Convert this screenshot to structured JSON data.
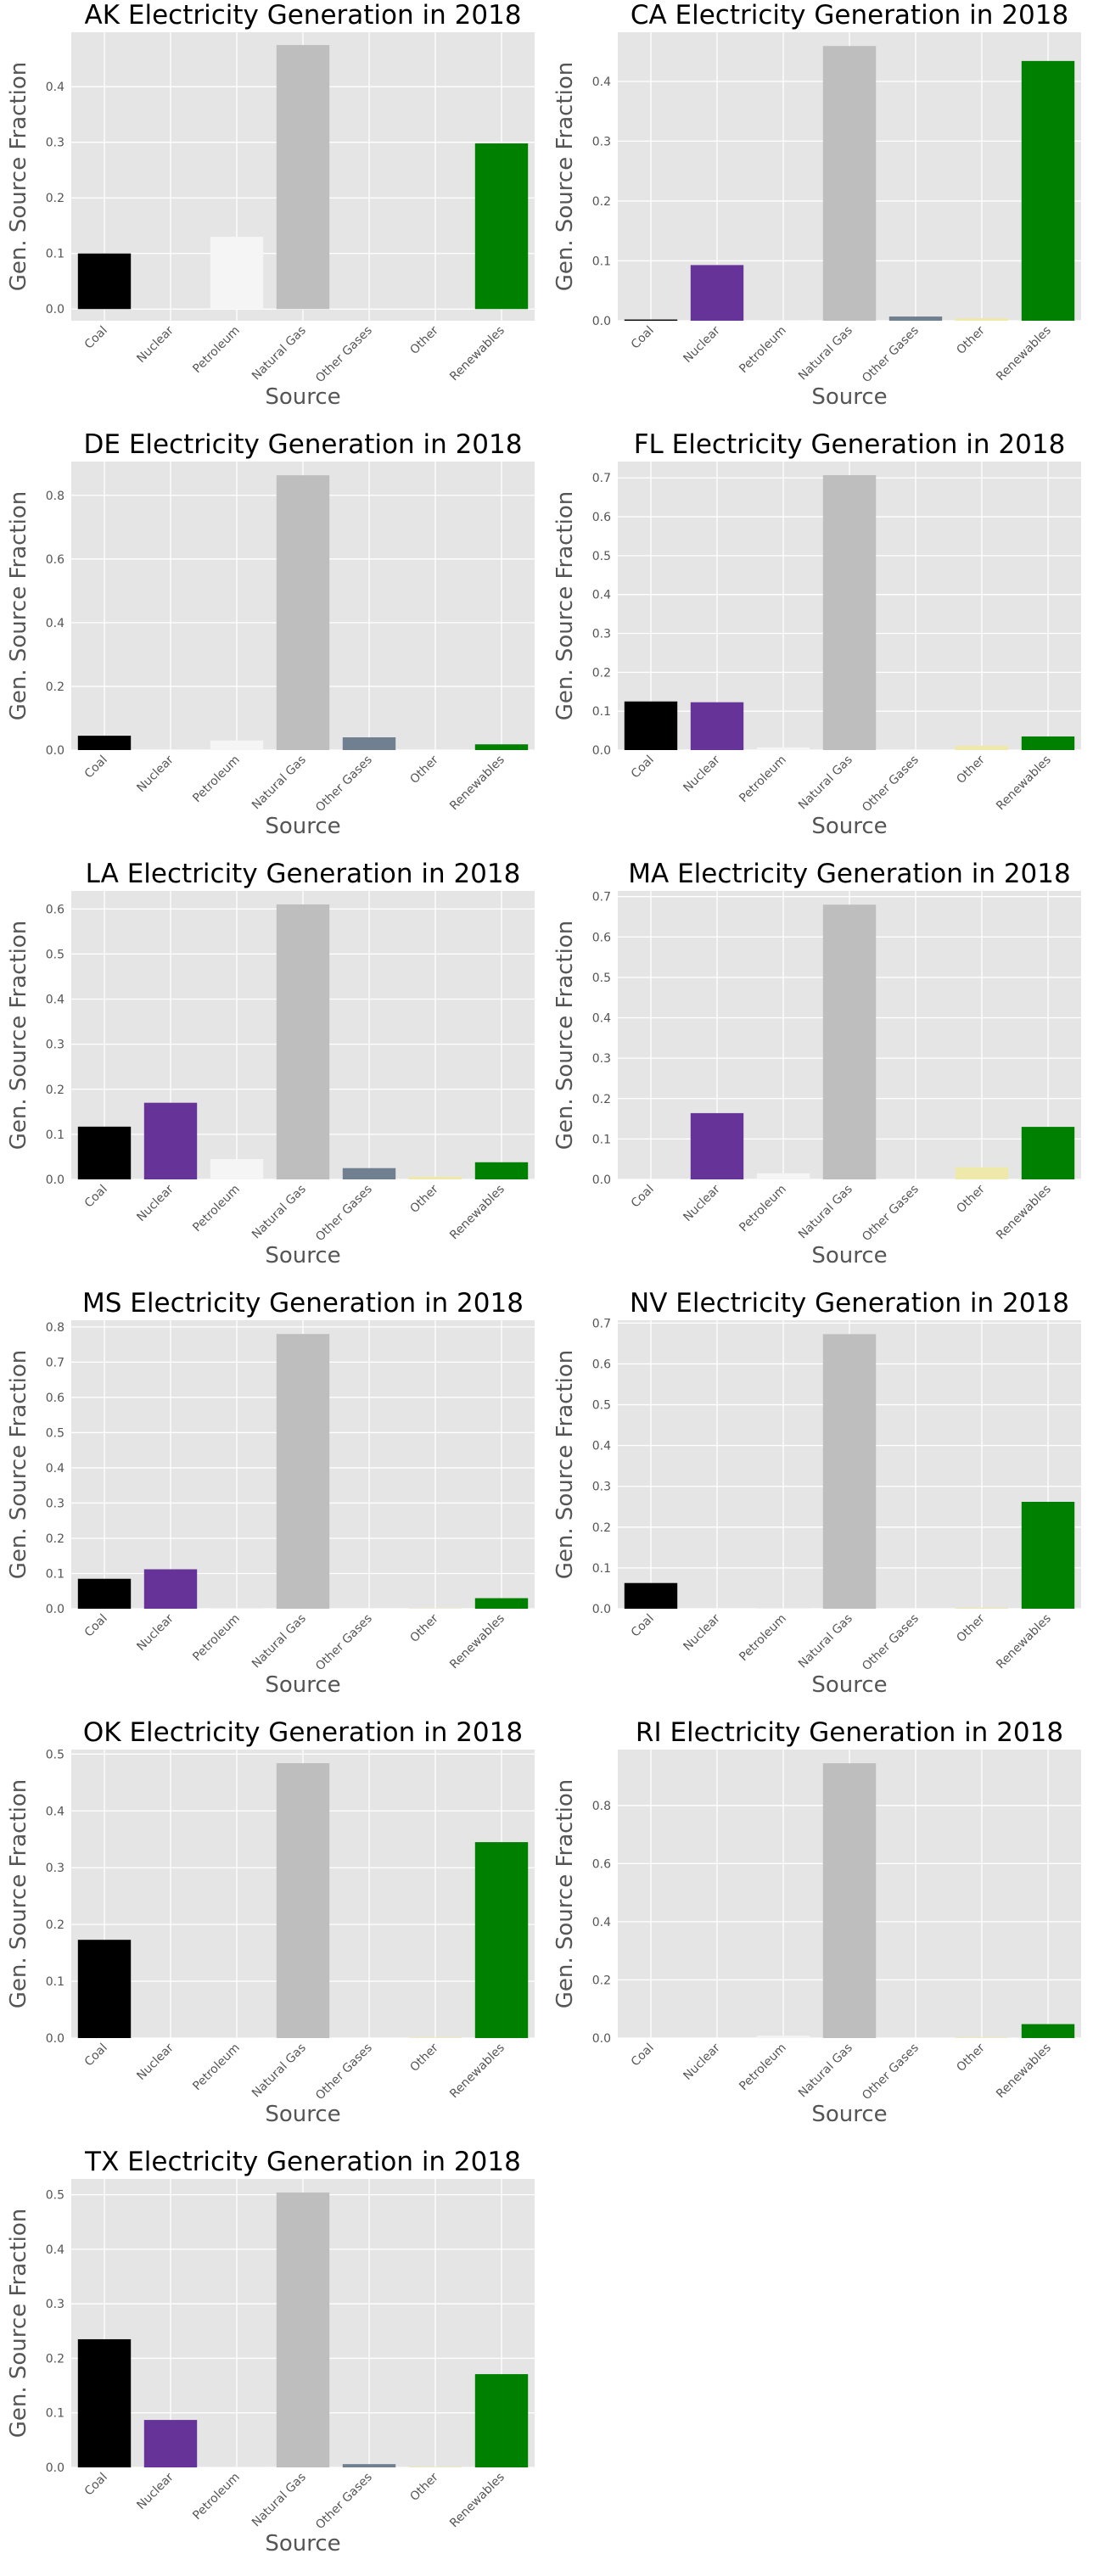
{
  "chart_data": [
    {
      "type": "bar",
      "title": "AK Electricity Generation in 2018",
      "xlabel": "Source",
      "ylabel": "Gen. Source Fraction",
      "categories": [
        "Coal",
        "Nuclear",
        "Petroleum",
        "Natural Gas",
        "Other Gases",
        "Other",
        "Renewables"
      ],
      "values": [
        0.1,
        0,
        0.13,
        0.475,
        0,
        0,
        0.298
      ],
      "colors": [
        "#000000",
        "#663399",
        "#f5f5f5",
        "#bebebe",
        "#708090",
        "#eee8aa",
        "#008000"
      ],
      "ylim": [
        -0.021,
        0.498
      ],
      "yticks": [
        "0.0",
        "0.1",
        "0.2",
        "0.3",
        "0.4"
      ],
      "grid": true,
      "legend": "none"
    },
    {
      "type": "bar",
      "title": "CA Electricity Generation in 2018",
      "xlabel": "Source",
      "ylabel": "Gen. Source Fraction",
      "categories": [
        "Coal",
        "Nuclear",
        "Petroleum",
        "Natural Gas",
        "Other Gases",
        "Other",
        "Renewables"
      ],
      "values": [
        0.002,
        0.093,
        0.001,
        0.459,
        0.007,
        0.004,
        0.434
      ],
      "colors": [
        "#000000",
        "#663399",
        "#f5f5f5",
        "#bebebe",
        "#708090",
        "#eee8aa",
        "#008000"
      ],
      "ylim": [
        0,
        0.482
      ],
      "yticks": [
        "0.0",
        "0.1",
        "0.2",
        "0.3",
        "0.4"
      ],
      "grid": true,
      "legend": "none"
    },
    {
      "type": "bar",
      "title": "DE Electricity Generation in 2018",
      "xlabel": "Source",
      "ylabel": "Gen. Source Fraction",
      "categories": [
        "Coal",
        "Nuclear",
        "Petroleum",
        "Natural Gas",
        "Other Gases",
        "Other",
        "Renewables"
      ],
      "values": [
        0.045,
        0,
        0.03,
        0.863,
        0.04,
        0,
        0.018
      ],
      "colors": [
        "#000000",
        "#663399",
        "#f5f5f5",
        "#bebebe",
        "#708090",
        "#eee8aa",
        "#008000"
      ],
      "ylim": [
        0,
        0.906
      ],
      "yticks": [
        "0.0",
        "0.2",
        "0.4",
        "0.6",
        "0.8"
      ],
      "grid": true,
      "legend": "none"
    },
    {
      "type": "bar",
      "title": "FL Electricity Generation in 2018",
      "xlabel": "Source",
      "ylabel": "Gen. Source Fraction",
      "categories": [
        "Coal",
        "Nuclear",
        "Petroleum",
        "Natural Gas",
        "Other Gases",
        "Other",
        "Renewables"
      ],
      "values": [
        0.125,
        0.123,
        0.007,
        0.707,
        0,
        0.011,
        0.035
      ],
      "colors": [
        "#000000",
        "#663399",
        "#f5f5f5",
        "#bebebe",
        "#708090",
        "#eee8aa",
        "#008000"
      ],
      "ylim": [
        0,
        0.742
      ],
      "yticks": [
        "0.0",
        "0.1",
        "0.2",
        "0.3",
        "0.4",
        "0.5",
        "0.6",
        "0.7"
      ],
      "grid": true,
      "legend": "none"
    },
    {
      "type": "bar",
      "title": "LA Electricity Generation in 2018",
      "xlabel": "Source",
      "ylabel": "Gen. Source Fraction",
      "categories": [
        "Coal",
        "Nuclear",
        "Petroleum",
        "Natural Gas",
        "Other Gases",
        "Other",
        "Renewables"
      ],
      "values": [
        0.117,
        0.17,
        0.045,
        0.61,
        0.025,
        0.006,
        0.038
      ],
      "colors": [
        "#000000",
        "#663399",
        "#f5f5f5",
        "#bebebe",
        "#708090",
        "#eee8aa",
        "#008000"
      ],
      "ylim": [
        0,
        0.64
      ],
      "yticks": [
        "0.0",
        "0.1",
        "0.2",
        "0.3",
        "0.4",
        "0.5",
        "0.6"
      ],
      "grid": true,
      "legend": "none"
    },
    {
      "type": "bar",
      "title": "MA Electricity Generation in 2018",
      "xlabel": "Source",
      "ylabel": "Gen. Source Fraction",
      "categories": [
        "Coal",
        "Nuclear",
        "Petroleum",
        "Natural Gas",
        "Other Gases",
        "Other",
        "Renewables"
      ],
      "values": [
        0,
        0.164,
        0.015,
        0.68,
        0,
        0.03,
        0.13
      ],
      "colors": [
        "#000000",
        "#663399",
        "#f5f5f5",
        "#bebebe",
        "#708090",
        "#eee8aa",
        "#008000"
      ],
      "ylim": [
        0,
        0.714
      ],
      "yticks": [
        "0.0",
        "0.1",
        "0.2",
        "0.3",
        "0.4",
        "0.5",
        "0.6",
        "0.7"
      ],
      "grid": true,
      "legend": "none"
    },
    {
      "type": "bar",
      "title": "MS Electricity Generation in 2018",
      "xlabel": "Source",
      "ylabel": "Gen. Source Fraction",
      "categories": [
        "Coal",
        "Nuclear",
        "Petroleum",
        "Natural Gas",
        "Other Gases",
        "Other",
        "Renewables"
      ],
      "values": [
        0.085,
        0.112,
        0.001,
        0.78,
        0,
        0.001,
        0.03
      ],
      "colors": [
        "#000000",
        "#663399",
        "#f5f5f5",
        "#bebebe",
        "#708090",
        "#eee8aa",
        "#008000"
      ],
      "ylim": [
        0,
        0.819
      ],
      "yticks": [
        "0.0",
        "0.1",
        "0.2",
        "0.3",
        "0.4",
        "0.5",
        "0.6",
        "0.7",
        "0.8"
      ],
      "grid": true,
      "legend": "none"
    },
    {
      "type": "bar",
      "title": "NV Electricity Generation in 2018",
      "xlabel": "Source",
      "ylabel": "Gen. Source Fraction",
      "categories": [
        "Coal",
        "Nuclear",
        "Petroleum",
        "Natural Gas",
        "Other Gases",
        "Other",
        "Renewables"
      ],
      "values": [
        0.063,
        0,
        0.001,
        0.673,
        0,
        0.002,
        0.262
      ],
      "colors": [
        "#000000",
        "#663399",
        "#f5f5f5",
        "#bebebe",
        "#708090",
        "#eee8aa",
        "#008000"
      ],
      "ylim": [
        0,
        0.707
      ],
      "yticks": [
        "0.0",
        "0.1",
        "0.2",
        "0.3",
        "0.4",
        "0.5",
        "0.6",
        "0.7"
      ],
      "grid": true,
      "legend": "none"
    },
    {
      "type": "bar",
      "title": "OK Electricity Generation in 2018",
      "xlabel": "Source",
      "ylabel": "Gen. Source Fraction",
      "categories": [
        "Coal",
        "Nuclear",
        "Petroleum",
        "Natural Gas",
        "Other Gases",
        "Other",
        "Renewables"
      ],
      "values": [
        0.173,
        0,
        0.001,
        0.484,
        0,
        0.001,
        0.345
      ],
      "colors": [
        "#000000",
        "#663399",
        "#f5f5f5",
        "#bebebe",
        "#708090",
        "#eee8aa",
        "#008000"
      ],
      "ylim": [
        0,
        0.508
      ],
      "yticks": [
        "0.0",
        "0.1",
        "0.2",
        "0.3",
        "0.4",
        "0.5"
      ],
      "grid": true,
      "legend": "none"
    },
    {
      "type": "bar",
      "title": "RI Electricity Generation in 2018",
      "xlabel": "Source",
      "ylabel": "Gen. Source Fraction",
      "categories": [
        "Coal",
        "Nuclear",
        "Petroleum",
        "Natural Gas",
        "Other Gases",
        "Other",
        "Renewables"
      ],
      "values": [
        0,
        0,
        0.008,
        0.945,
        0,
        0.002,
        0.048
      ],
      "colors": [
        "#000000",
        "#663399",
        "#f5f5f5",
        "#bebebe",
        "#708090",
        "#eee8aa",
        "#008000"
      ],
      "ylim": [
        0,
        0.992
      ],
      "yticks": [
        "0.0",
        "0.2",
        "0.4",
        "0.6",
        "0.8"
      ],
      "grid": true,
      "legend": "none"
    },
    {
      "type": "bar",
      "title": "TX Electricity Generation in 2018",
      "xlabel": "Source",
      "ylabel": "Gen. Source Fraction",
      "categories": [
        "Coal",
        "Nuclear",
        "Petroleum",
        "Natural Gas",
        "Other Gases",
        "Other",
        "Renewables"
      ],
      "values": [
        0.235,
        0.087,
        0.001,
        0.504,
        0.006,
        0.001,
        0.171
      ],
      "colors": [
        "#000000",
        "#663399",
        "#f5f5f5",
        "#bebebe",
        "#708090",
        "#eee8aa",
        "#008000"
      ],
      "ylim": [
        0,
        0.529
      ],
      "yticks": [
        "0.0",
        "0.1",
        "0.2",
        "0.3",
        "0.4",
        "0.5"
      ],
      "grid": true,
      "legend": "none"
    }
  ]
}
